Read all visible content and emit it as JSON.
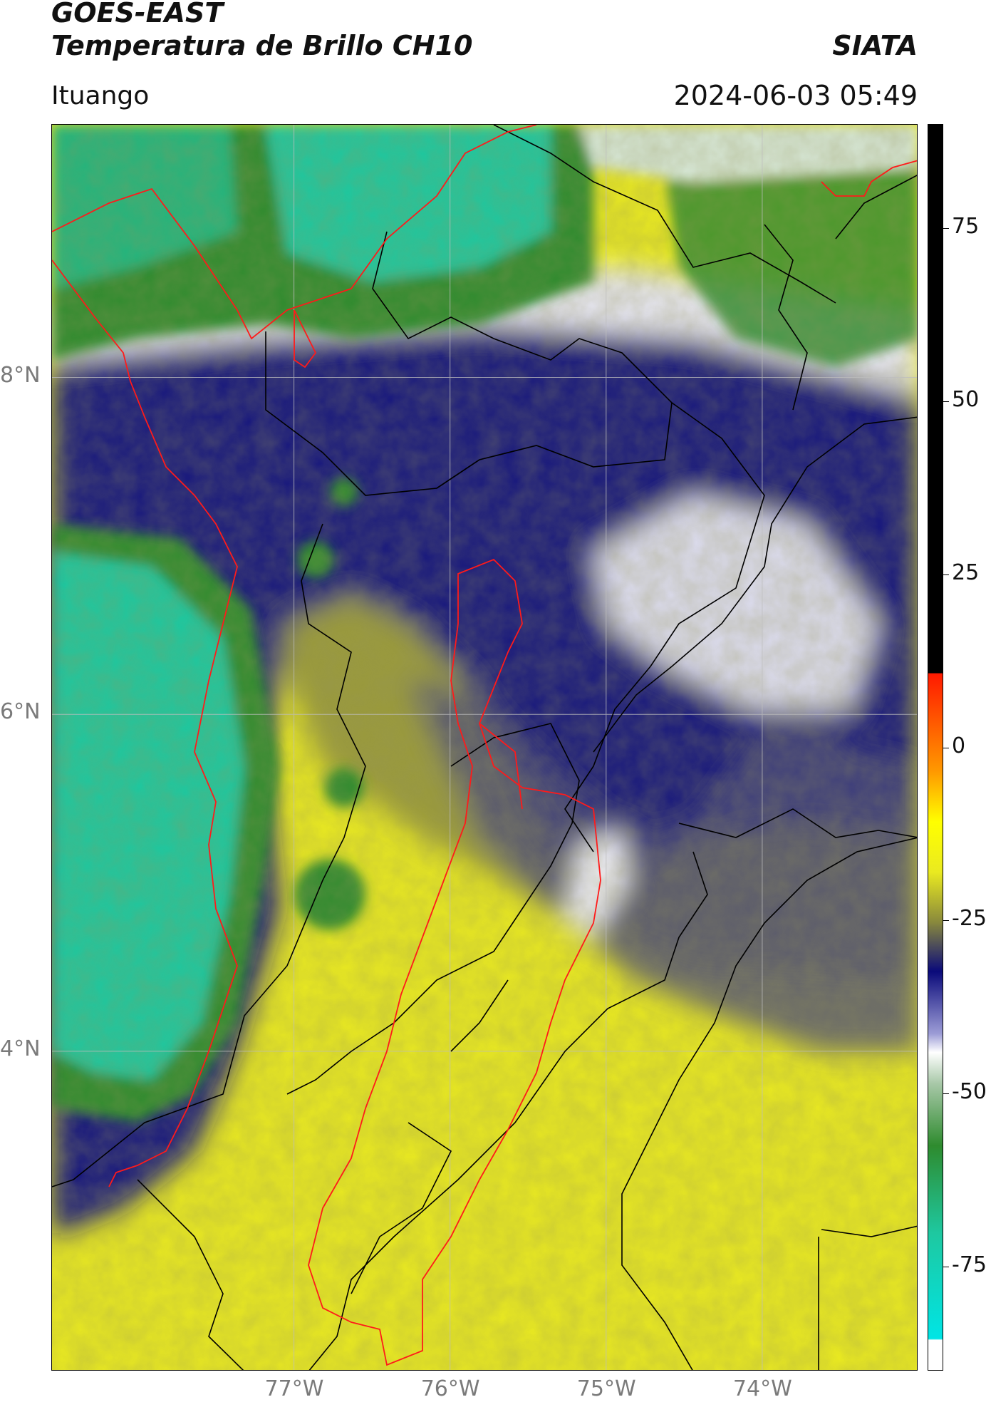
{
  "header": {
    "satellite": "GOES-EAST",
    "product": "Temperatura de Brillo CH10",
    "organization": "SIATA",
    "location": "Ituango",
    "datetime": "2024-06-03 05:49"
  },
  "map": {
    "lat_labels": [
      "8°N",
      "6°N",
      "4°N"
    ],
    "lon_labels": [
      "77°W",
      "76°W",
      "75°W",
      "74°W"
    ],
    "lat_values": [
      8,
      6,
      4
    ],
    "lon_values": [
      -77,
      -76,
      -75,
      -74
    ],
    "gridlines": true
  },
  "colorbar": {
    "ticks": [
      "75",
      "50",
      "25",
      "0",
      "-25",
      "-50",
      "-75"
    ],
    "tick_values": [
      75,
      50,
      25,
      0,
      -25,
      -50,
      -75
    ],
    "range": [
      -90,
      90
    ],
    "colors": {
      "black": "#000000",
      "red": "#ff1a00",
      "orange": "#ff9a00",
      "yellow": "#ffff00",
      "olive": "#8a8a3c",
      "navy": "#0a0a7a",
      "lavender": "#9c9cd6",
      "white": "#ffffff",
      "green": "#2e8b2e",
      "teal": "#1ec8a0",
      "cyan": "#00e5e5"
    }
  }
}
